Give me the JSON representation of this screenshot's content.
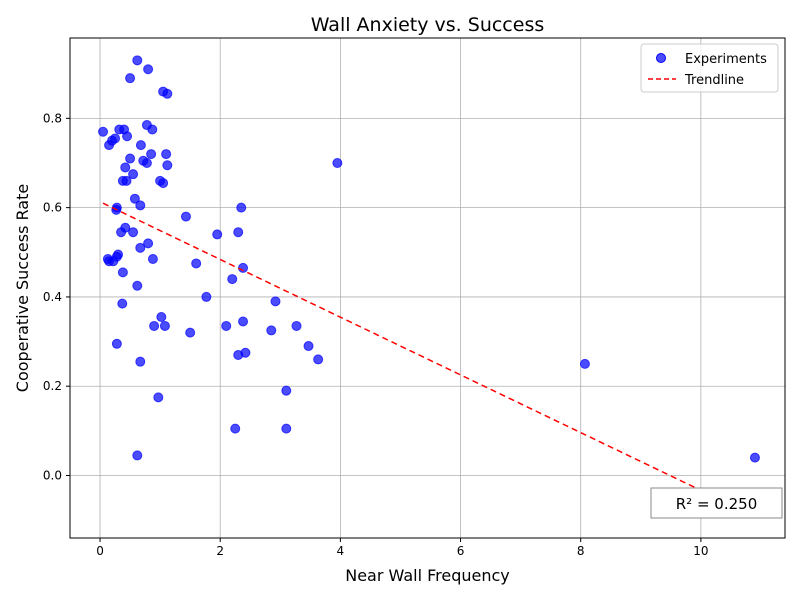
{
  "chart_data": {
    "type": "scatter",
    "title": "Wall Anxiety vs. Success",
    "xlabel": "Near Wall Frequency",
    "ylabel": "Cooperative Success Rate",
    "xlim": [
      -0.5,
      11.4
    ],
    "ylim": [
      -0.14,
      0.98
    ],
    "xticks": [
      0,
      2,
      4,
      6,
      8,
      10
    ],
    "yticks": [
      0.0,
      0.2,
      0.4,
      0.6,
      0.8
    ],
    "xtick_labels": [
      "0",
      "2",
      "4",
      "6",
      "8",
      "10"
    ],
    "ytick_labels": [
      "0.0",
      "0.2",
      "0.4",
      "0.6",
      "0.8"
    ],
    "grid": true,
    "legend_position": "top-right",
    "annotation": "R² = 0.250",
    "series": [
      {
        "name": "Experiments",
        "kind": "scatter",
        "color": "#0000ff",
        "points": [
          [
            0.05,
            0.77
          ],
          [
            0.15,
            0.74
          ],
          [
            0.2,
            0.75
          ],
          [
            0.25,
            0.755
          ],
          [
            0.32,
            0.775
          ],
          [
            0.4,
            0.775
          ],
          [
            0.45,
            0.76
          ],
          [
            0.5,
            0.89
          ],
          [
            0.62,
            0.93
          ],
          [
            0.8,
            0.91
          ],
          [
            1.05,
            0.86
          ],
          [
            1.12,
            0.855
          ],
          [
            0.78,
            0.785
          ],
          [
            0.87,
            0.775
          ],
          [
            0.68,
            0.74
          ],
          [
            0.5,
            0.71
          ],
          [
            0.72,
            0.705
          ],
          [
            0.78,
            0.7
          ],
          [
            0.85,
            0.72
          ],
          [
            1.1,
            0.72
          ],
          [
            1.12,
            0.695
          ],
          [
            1.0,
            0.66
          ],
          [
            1.05,
            0.655
          ],
          [
            0.42,
            0.69
          ],
          [
            0.38,
            0.66
          ],
          [
            0.44,
            0.66
          ],
          [
            0.55,
            0.675
          ],
          [
            0.58,
            0.62
          ],
          [
            0.67,
            0.605
          ],
          [
            0.28,
            0.6
          ],
          [
            0.27,
            0.595
          ],
          [
            0.35,
            0.545
          ],
          [
            0.42,
            0.555
          ],
          [
            0.55,
            0.545
          ],
          [
            0.8,
            0.52
          ],
          [
            0.67,
            0.51
          ],
          [
            0.3,
            0.495
          ],
          [
            0.28,
            0.49
          ],
          [
            0.15,
            0.48
          ],
          [
            0.13,
            0.485
          ],
          [
            0.22,
            0.48
          ],
          [
            0.88,
            0.485
          ],
          [
            0.38,
            0.455
          ],
          [
            0.62,
            0.425
          ],
          [
            0.37,
            0.385
          ],
          [
            1.02,
            0.355
          ],
          [
            1.08,
            0.335
          ],
          [
            0.9,
            0.335
          ],
          [
            0.28,
            0.295
          ],
          [
            0.67,
            0.255
          ],
          [
            0.97,
            0.175
          ],
          [
            0.62,
            0.045
          ],
          [
            1.43,
            0.58
          ],
          [
            1.95,
            0.54
          ],
          [
            1.6,
            0.475
          ],
          [
            1.77,
            0.4
          ],
          [
            1.5,
            0.32
          ],
          [
            2.2,
            0.44
          ],
          [
            2.3,
            0.545
          ],
          [
            2.35,
            0.6
          ],
          [
            2.38,
            0.465
          ],
          [
            2.1,
            0.335
          ],
          [
            2.38,
            0.345
          ],
          [
            2.3,
            0.27
          ],
          [
            2.42,
            0.275
          ],
          [
            2.25,
            0.105
          ],
          [
            2.92,
            0.39
          ],
          [
            2.85,
            0.325
          ],
          [
            3.27,
            0.335
          ],
          [
            3.47,
            0.29
          ],
          [
            3.63,
            0.26
          ],
          [
            3.1,
            0.19
          ],
          [
            3.1,
            0.105
          ],
          [
            3.95,
            0.7
          ],
          [
            8.07,
            0.25
          ],
          [
            10.9,
            0.04
          ]
        ]
      },
      {
        "name": "Trendline",
        "kind": "line",
        "style": "dashed",
        "color": "#ff0000",
        "x": [
          0.05,
          9.95
        ],
        "y": [
          0.61,
          -0.03
        ]
      }
    ]
  }
}
